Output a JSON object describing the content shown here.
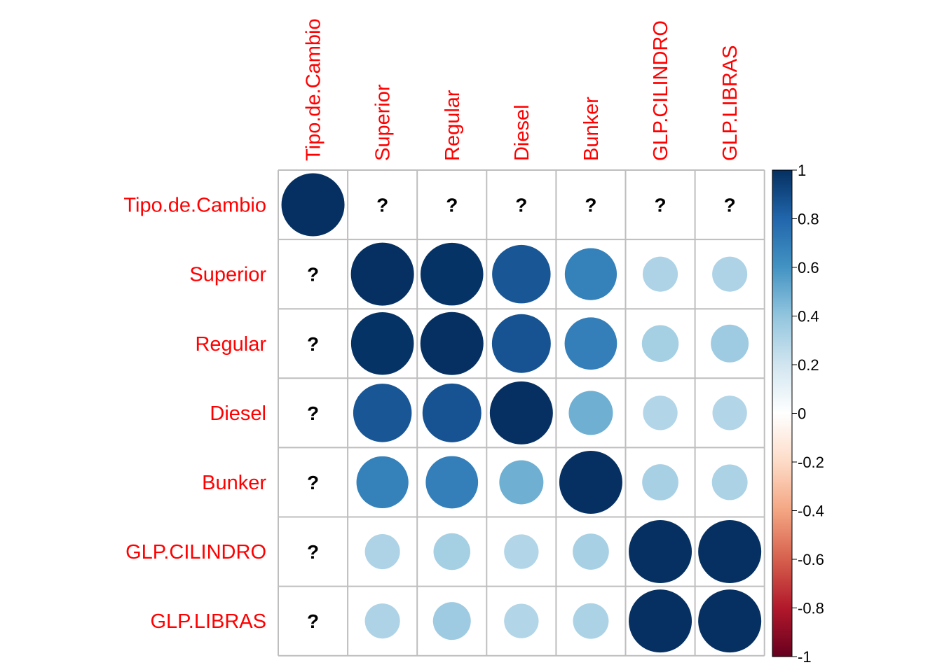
{
  "chart_data": {
    "type": "heatmap",
    "style": "corrplot-circle",
    "variables": [
      "Tipo.de.Cambio",
      "Superior",
      "Regular",
      "Diesel",
      "Bunker",
      "GLP.CILINDRO",
      "GLP.LIBRAS"
    ],
    "matrix": [
      [
        1,
        null,
        null,
        null,
        null,
        null,
        null
      ],
      [
        null,
        1.0,
        0.99,
        0.86,
        0.68,
        0.31,
        0.31
      ],
      [
        null,
        0.99,
        1.0,
        0.87,
        0.69,
        0.34,
        0.36
      ],
      [
        null,
        0.86,
        0.87,
        1.0,
        0.49,
        0.3,
        0.3
      ],
      [
        null,
        0.68,
        0.69,
        0.49,
        1.0,
        0.33,
        0.32
      ],
      [
        null,
        0.31,
        0.34,
        0.3,
        0.33,
        1.0,
        1.0
      ],
      [
        null,
        0.31,
        0.36,
        0.3,
        0.32,
        1.0,
        1.0
      ]
    ],
    "missing_marker": "?",
    "colorbar": {
      "range": [
        -1,
        1
      ],
      "ticks": [
        "1",
        "0.8",
        "0.6",
        "0.4",
        "0.2",
        "0",
        "-0.2",
        "-0.4",
        "-0.6",
        "-0.8",
        "-1"
      ]
    },
    "colors": {
      "label": "#ff0000",
      "grid": "#bebebe",
      "palette": [
        "#67001f",
        "#b2182b",
        "#d6604d",
        "#f4a582",
        "#fddbc7",
        "#ffffff",
        "#d1e5f0",
        "#92c5de",
        "#4393c3",
        "#2166ac",
        "#053061"
      ]
    }
  }
}
